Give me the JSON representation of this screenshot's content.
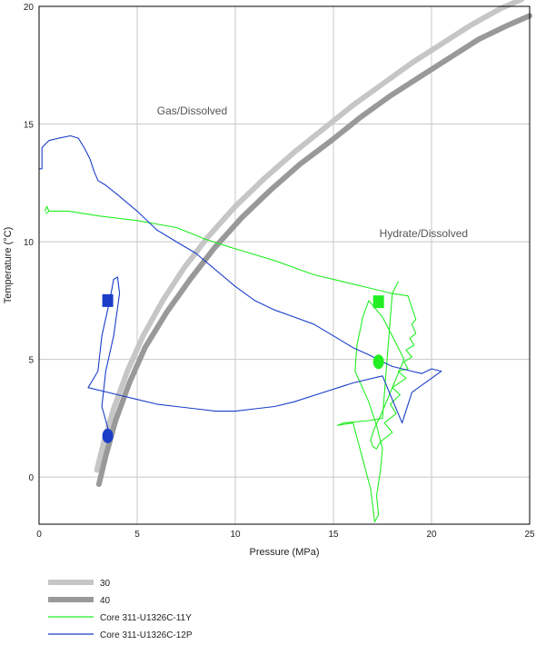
{
  "chart_data": {
    "type": "line",
    "title": "",
    "xlabel": "Pressure (MPa)",
    "ylabel": "Temperature (°C)",
    "xlim": [
      0,
      25
    ],
    "ylim": [
      -2,
      20
    ],
    "xticks": [
      0,
      5,
      10,
      15,
      20,
      25
    ],
    "yticks": [
      0,
      5,
      10,
      15,
      20
    ],
    "grid": true,
    "legend_position": "bottom",
    "annotations": [
      {
        "text": "Gas/Dissolved",
        "x": 7.8,
        "y": 15.4
      },
      {
        "text": "Hydrate/Dissolved",
        "x": 19.6,
        "y": 10.2
      }
    ],
    "series": [
      {
        "name": "30",
        "style": "stability-curve",
        "color": "#c6c6c6",
        "x": [
          2.95,
          3.3,
          3.8,
          4.5,
          5.3,
          6.3,
          7.4,
          8.6,
          10.0,
          11.5,
          13.0,
          14.5,
          16.0,
          17.5,
          19.0,
          20.5,
          22.0,
          23.5,
          24.6
        ],
        "y": [
          0.3,
          1.5,
          2.9,
          4.5,
          6.0,
          7.5,
          8.9,
          10.2,
          11.5,
          12.7,
          13.8,
          14.8,
          15.8,
          16.7,
          17.6,
          18.4,
          19.2,
          19.9,
          20.3
        ]
      },
      {
        "name": "40",
        "style": "stability-curve",
        "color": "#999999",
        "x": [
          3.05,
          3.4,
          3.9,
          4.6,
          5.4,
          6.5,
          7.7,
          8.9,
          10.3,
          11.8,
          13.3,
          14.9,
          16.4,
          17.9,
          19.4,
          20.9,
          22.4,
          23.9,
          25.0
        ],
        "y": [
          -0.3,
          0.9,
          2.4,
          4.0,
          5.5,
          7.0,
          8.4,
          9.7,
          11.0,
          12.2,
          13.3,
          14.3,
          15.3,
          16.2,
          17.0,
          17.8,
          18.6,
          19.2,
          19.6
        ]
      },
      {
        "name": "Core 311-U1326C-11Y",
        "color": "#22ee22",
        "x": [
          0.3,
          0.4,
          0.5,
          0.35,
          0.5,
          1.5,
          3.0,
          5.0,
          7.0,
          8.5,
          10.0,
          12.0,
          14.0,
          16.0,
          17.0,
          18.0,
          18.8,
          19.0,
          19.2,
          19.0,
          19.2,
          18.9,
          19.1,
          18.7,
          19.0,
          18.6,
          18.8,
          18.3,
          18.7,
          18.0,
          18.4,
          17.9,
          18.2,
          17.6,
          18.0,
          17.4,
          17.2,
          17.0,
          16.9,
          17.1,
          17.4,
          17.8,
          18.2,
          18.6,
          18.0,
          17.5,
          16.8,
          16.5,
          16.2,
          16.1,
          16.8,
          17.2,
          17.5,
          17.4,
          17.2,
          17.3,
          17.1,
          16.9,
          16.0,
          15.2,
          15.5,
          16.8,
          17.5,
          18.0,
          18.3
        ],
        "y": [
          11.3,
          11.5,
          11.3,
          11.2,
          11.3,
          11.3,
          11.1,
          10.9,
          10.6,
          10.1,
          9.7,
          9.2,
          8.6,
          8.2,
          8.0,
          7.8,
          7.7,
          7.2,
          6.7,
          6.5,
          6.1,
          5.9,
          5.6,
          5.4,
          5.1,
          4.9,
          4.6,
          4.5,
          4.2,
          3.8,
          3.5,
          3.1,
          2.7,
          2.3,
          1.9,
          1.5,
          1.2,
          1.3,
          1.6,
          2.1,
          2.6,
          3.4,
          4.2,
          5.0,
          6.0,
          6.8,
          7.5,
          6.8,
          5.6,
          4.5,
          3.2,
          2.2,
          1.2,
          0.3,
          -0.8,
          -1.6,
          -1.9,
          -0.5,
          2.3,
          2.2,
          2.3,
          2.4,
          2.5,
          7.8,
          8.3
        ]
      },
      {
        "name": "Core 311-U1326C-12P",
        "color": "#1a3ec8",
        "x": [
          0.0,
          0.15,
          0.15,
          0.5,
          1.0,
          1.6,
          2.0,
          2.3,
          2.6,
          2.8,
          3.0,
          3.4,
          4.0,
          5.0,
          6.0,
          7.0,
          8.0,
          9.0,
          10.0,
          11.0,
          12.0,
          13.0,
          14.0,
          15.0,
          16.0,
          16.8,
          17.5,
          18.0,
          18.5,
          19.0,
          19.5,
          20.0,
          20.5,
          20.0,
          19.5,
          19.0,
          18.5,
          17.5,
          16.0,
          14.5,
          13.0,
          12.0,
          11.0,
          10.0,
          9.0,
          8.0,
          7.0,
          6.0,
          5.0,
          4.0,
          3.5,
          2.5,
          3.0,
          3.2,
          3.6,
          3.8,
          4.0,
          4.1,
          3.8,
          3.4,
          3.2,
          3.6
        ],
        "y": [
          13.1,
          13.1,
          14.0,
          14.3,
          14.4,
          14.5,
          14.4,
          14.0,
          13.5,
          13.0,
          12.6,
          12.4,
          12.0,
          11.3,
          10.5,
          10.0,
          9.5,
          8.8,
          8.1,
          7.5,
          7.1,
          6.8,
          6.5,
          6.0,
          5.5,
          5.2,
          4.9,
          4.7,
          4.6,
          4.5,
          4.4,
          4.6,
          4.5,
          4.2,
          3.9,
          3.6,
          2.3,
          4.3,
          4.0,
          3.6,
          3.2,
          3.0,
          2.9,
          2.8,
          2.8,
          2.9,
          3.0,
          3.1,
          3.3,
          3.5,
          3.6,
          3.8,
          4.5,
          6.0,
          7.5,
          8.4,
          8.5,
          7.8,
          6.0,
          4.5,
          3.0,
          1.8
        ]
      }
    ],
    "markers": [
      {
        "shape": "square",
        "color": "#1a3ec8",
        "x": 3.5,
        "y": 7.5
      },
      {
        "shape": "circle",
        "color": "#1a3ec8",
        "x": 3.5,
        "y": 1.75
      },
      {
        "shape": "square",
        "color": "#22ee22",
        "x": 17.3,
        "y": 7.45
      },
      {
        "shape": "circle",
        "color": "#22ee22",
        "x": 17.3,
        "y": 4.9
      }
    ]
  },
  "legend": [
    {
      "label": "30",
      "color": "#c6c6c6",
      "style": "thick"
    },
    {
      "label": "40",
      "color": "#999999",
      "style": "thick"
    },
    {
      "label": "Core 311-U1326C-11Y",
      "color": "#22ee22",
      "style": "thin"
    },
    {
      "label": "Core 311-U1326C-12P",
      "color": "#1a3ec8",
      "style": "thin"
    }
  ]
}
